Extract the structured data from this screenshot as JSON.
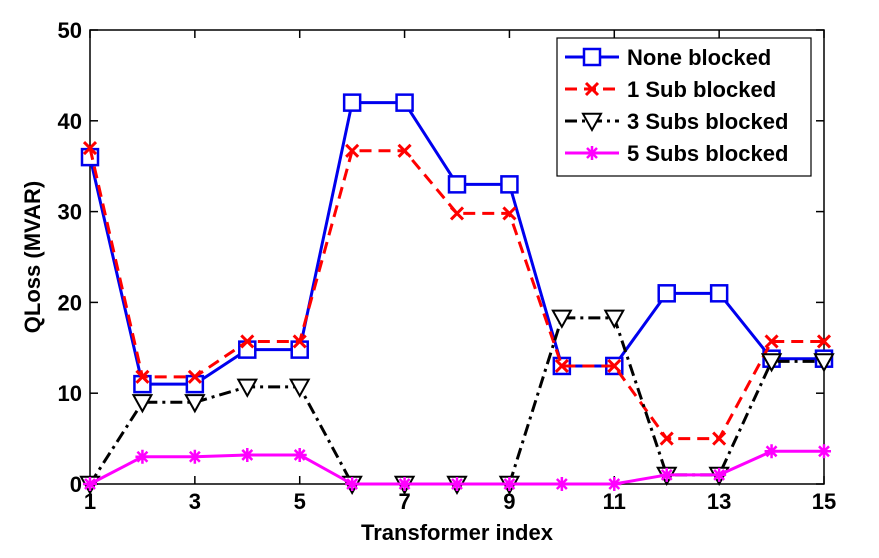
{
  "chart_data": {
    "type": "line",
    "title": "",
    "xlabel": "Transformer index",
    "ylabel": "QLoss (MVAR)",
    "xlim": [
      1,
      15
    ],
    "ylim": [
      0,
      50
    ],
    "xticks": [
      1,
      3,
      5,
      7,
      9,
      11,
      13,
      15
    ],
    "yticks": [
      0,
      10,
      20,
      30,
      40,
      50
    ],
    "x": [
      1,
      2,
      3,
      4,
      5,
      6,
      7,
      8,
      9,
      10,
      11,
      12,
      13,
      14,
      15
    ],
    "legend_position": "top-right",
    "series": [
      {
        "name": "None blocked",
        "color": "#0000ee",
        "dash": "solid",
        "marker": "square",
        "values": [
          36,
          11,
          11,
          14.8,
          14.8,
          42,
          42,
          33,
          33,
          13,
          13,
          21,
          21,
          13.8,
          13.8
        ]
      },
      {
        "name": "1 Sub blocked",
        "color": "#ff0000",
        "dash": "dashed",
        "marker": "x",
        "values": [
          37,
          11.8,
          11.8,
          15.7,
          15.7,
          36.7,
          36.7,
          29.8,
          29.8,
          13,
          13,
          5,
          5,
          15.7,
          15.7
        ]
      },
      {
        "name": "3 Subs blocked",
        "color": "#000000",
        "dash": "dashdot",
        "marker": "triangle-down",
        "values": [
          0,
          9,
          9,
          10.7,
          10.7,
          0,
          0,
          0,
          0,
          18.3,
          18.3,
          1,
          1,
          13.5,
          13.5
        ]
      },
      {
        "name": "5 Subs blocked",
        "color": "#ff00ff",
        "dash": "solid",
        "marker": "asterisk",
        "values": [
          0,
          3,
          3,
          3.2,
          3.2,
          0,
          0,
          0,
          0,
          0,
          0,
          1,
          1,
          3.6,
          3.6
        ]
      }
    ]
  }
}
